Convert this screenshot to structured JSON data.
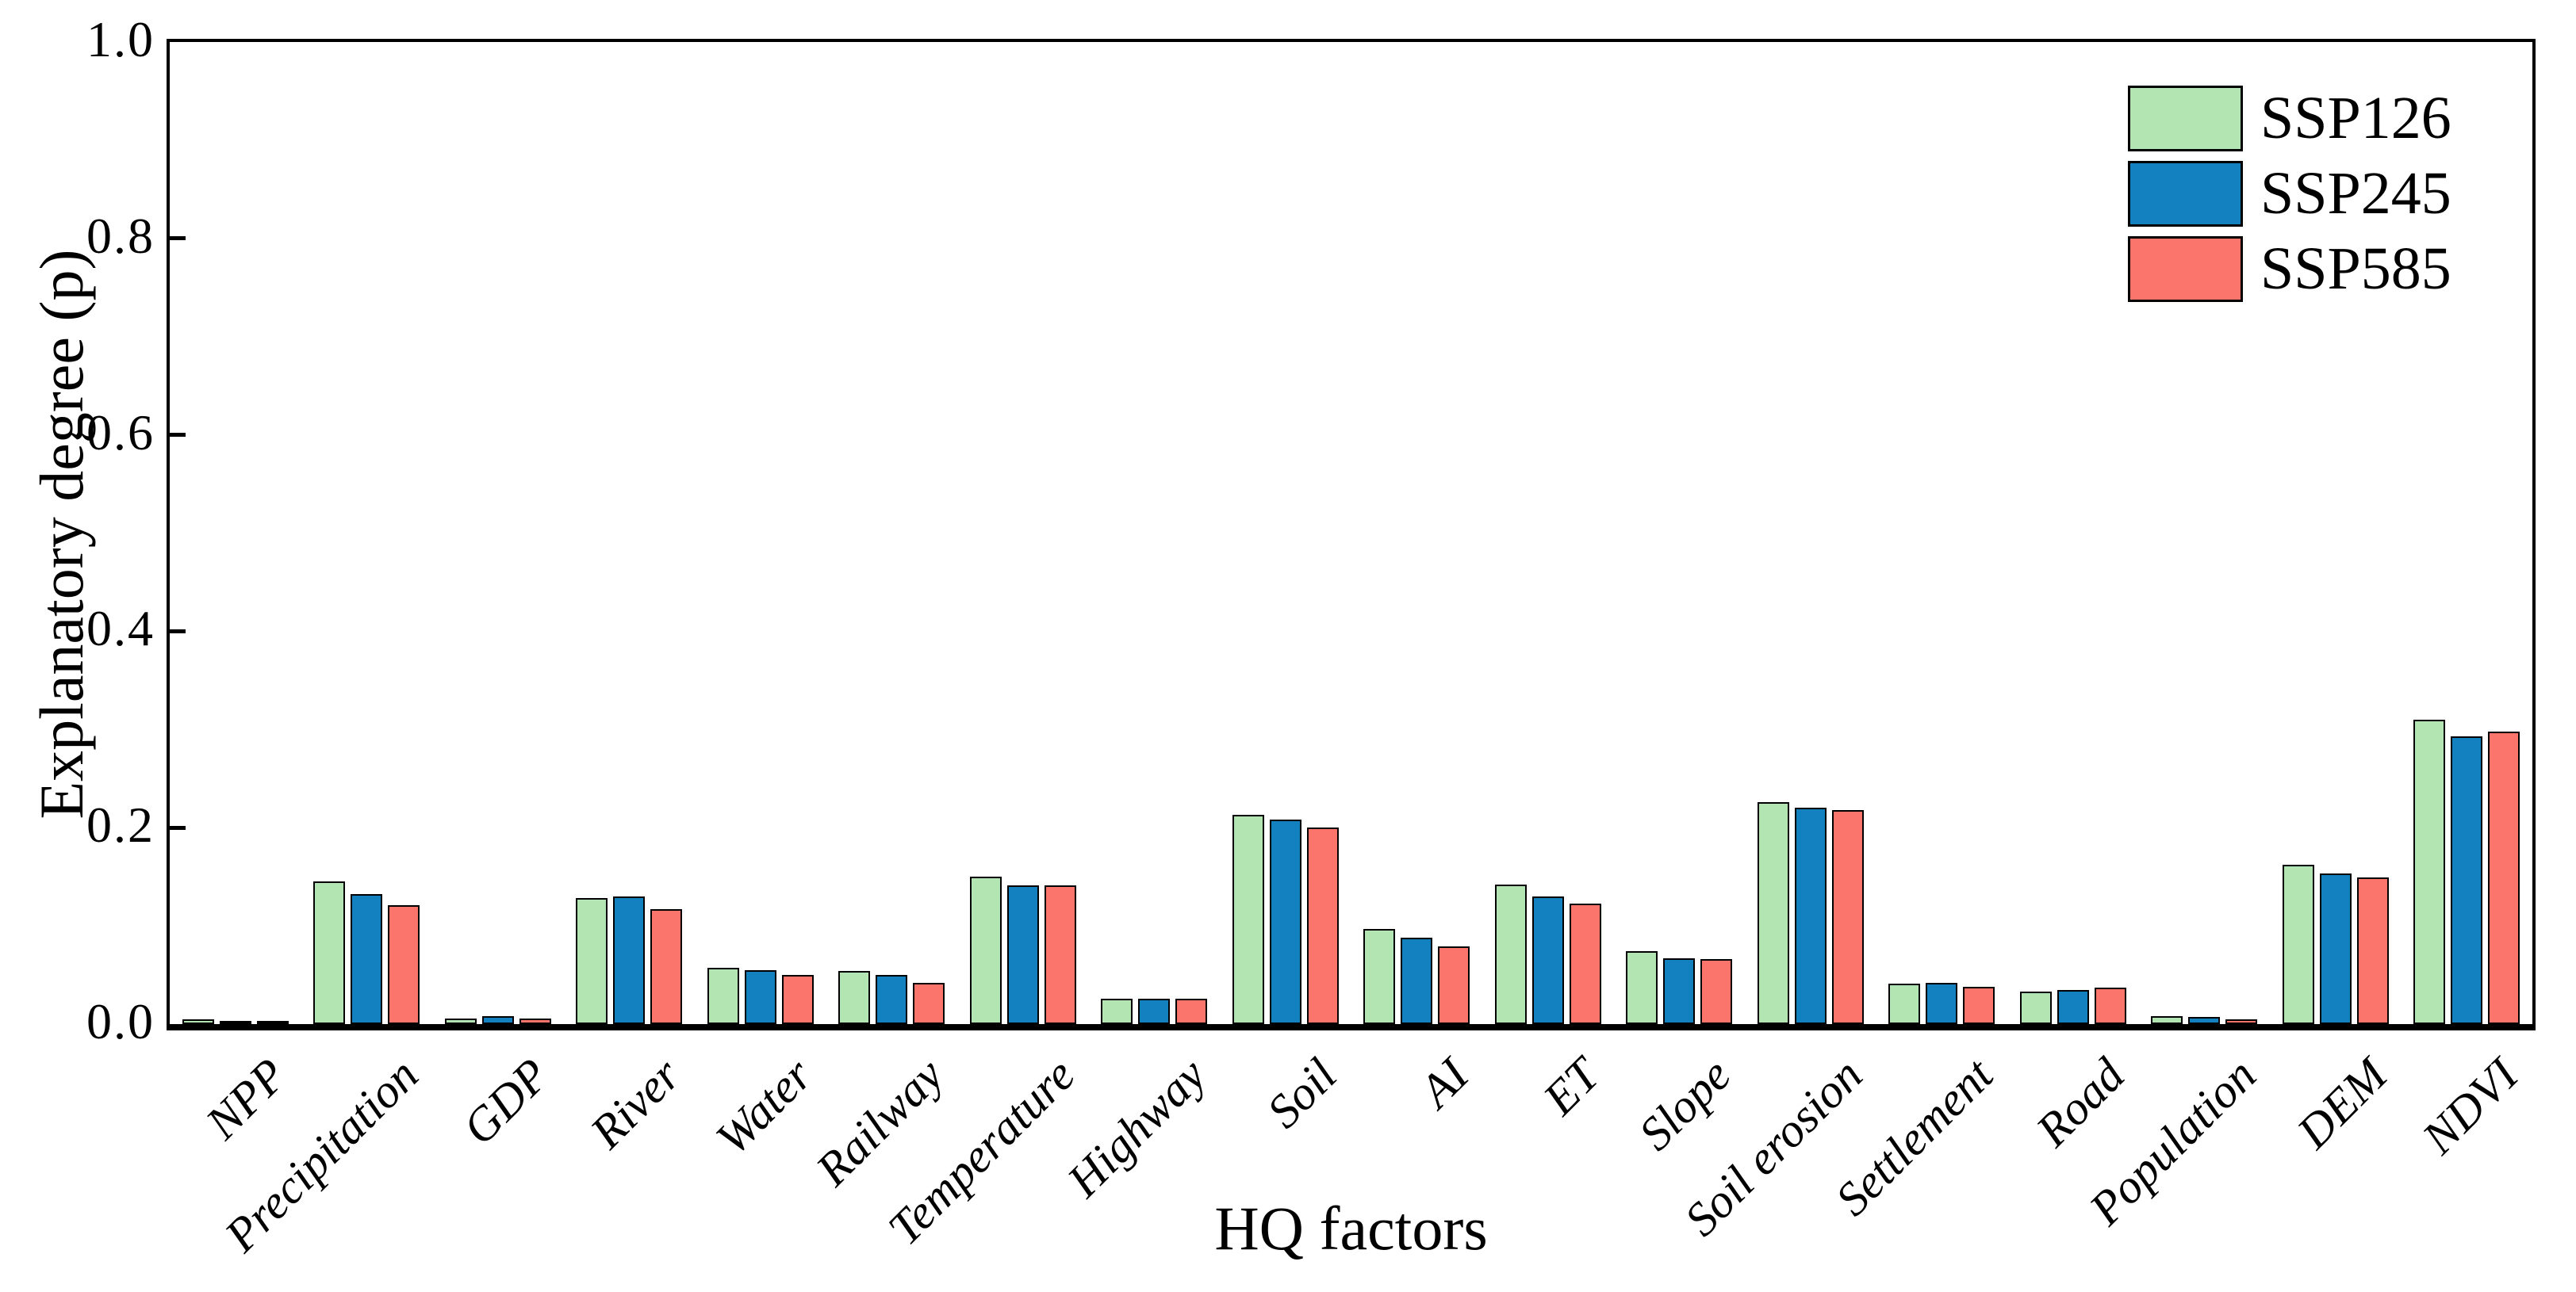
{
  "chart_data": {
    "type": "bar",
    "title": "",
    "xlabel": "HQ factors",
    "ylabel": "Explanatory degree (p)",
    "ylim": [
      0.0,
      1.0
    ],
    "ytick_labels": [
      "0.0",
      "0.2",
      "0.4",
      "0.6",
      "0.8",
      "1.0"
    ],
    "ytick_values": [
      0.0,
      0.2,
      0.4,
      0.6,
      0.8,
      1.0
    ],
    "grid": false,
    "legend_position": "top-right",
    "bar_edge_color": "#000000",
    "categories": [
      "NPP",
      "Precipitation",
      "GDP",
      "River",
      "Water",
      "Railway",
      "Temperature",
      "Highway",
      "Soil",
      "AI",
      "ET",
      "Slope",
      "Soil erosion",
      "Settlement",
      "Road",
      "Population",
      "DEM",
      "NDVI"
    ],
    "series": [
      {
        "name": "SSP126",
        "color": "#b2e5b2",
        "values": [
          0.005,
          0.145,
          0.006,
          0.128,
          0.057,
          0.054,
          0.15,
          0.026,
          0.213,
          0.097,
          0.142,
          0.074,
          0.226,
          0.041,
          0.033,
          0.008,
          0.162,
          0.31
        ]
      },
      {
        "name": "SSP245",
        "color": "#1380bf",
        "values": [
          0.002,
          0.132,
          0.008,
          0.13,
          0.055,
          0.05,
          0.141,
          0.026,
          0.208,
          0.088,
          0.13,
          0.067,
          0.22,
          0.042,
          0.035,
          0.007,
          0.153,
          0.293
        ]
      },
      {
        "name": "SSP585",
        "color": "#fb756c",
        "values": [
          0.002,
          0.121,
          0.006,
          0.117,
          0.05,
          0.042,
          0.141,
          0.026,
          0.2,
          0.079,
          0.123,
          0.066,
          0.218,
          0.038,
          0.037,
          0.005,
          0.149,
          0.298
        ]
      }
    ]
  }
}
